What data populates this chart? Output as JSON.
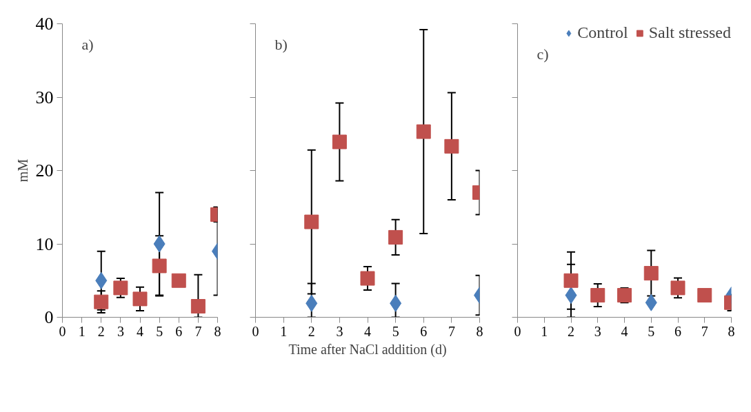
{
  "chart_data": [
    {
      "type": "scatter",
      "annotations": [
        "a)"
      ],
      "ylabel": "mM",
      "xlim": [
        0,
        8
      ],
      "xticks": [
        0,
        1,
        2,
        3,
        4,
        5,
        6,
        7,
        8
      ],
      "ylim": [
        0,
        40
      ],
      "yticks": [
        0,
        10,
        20,
        30,
        40
      ],
      "grid": false,
      "legend": "top right",
      "series": [
        {
          "name": "Control",
          "color": "#4a7ebb",
          "marker": "diamond",
          "x": [
            2,
            5,
            8
          ],
          "values": [
            5.0,
            10.0,
            9.0
          ],
          "errors": [
            4,
            7,
            6
          ]
        },
        {
          "name": "Salt stressed",
          "color": "#c0504d",
          "marker": "square",
          "x": [
            2,
            3,
            4,
            5,
            6,
            7,
            8
          ],
          "values": [
            2.1,
            4.0,
            2.5,
            7.0,
            5.0,
            1.5,
            14.0
          ],
          "errors": [
            1.5,
            1.3,
            1.6,
            4.1,
            null,
            [
              0,
              5.8
            ],
            1
          ]
        }
      ]
    },
    {
      "type": "scatter",
      "annotations": [
        "b)"
      ],
      "xlabel": "Time after NaCl addition (d)",
      "xlim": [
        0,
        8
      ],
      "xticks": [
        0,
        1,
        2,
        3,
        4,
        5,
        6,
        7,
        8
      ],
      "ylim": [
        0,
        40
      ],
      "yticks": [
        {
          "value": 0,
          "label": null
        },
        {
          "value": 10,
          "label": null
        },
        {
          "value": 20,
          "label": null
        },
        {
          "value": 30,
          "label": null
        },
        {
          "value": 40,
          "label": null
        }
      ],
      "tick_labels": "x",
      "grid": false,
      "legend": false,
      "series": [
        {
          "color": "#4a7ebb",
          "marker": "diamond",
          "x": [
            2,
            5,
            8
          ],
          "values": [
            1.9,
            1.9,
            3.0
          ],
          "errors": [
            [
              0,
              4.6
            ],
            [
              0,
              4.6
            ],
            2.7
          ]
        },
        {
          "color": "#c0504d",
          "marker": "square",
          "x": [
            2,
            3,
            4,
            5,
            6,
            7,
            8
          ],
          "values": [
            13.0,
            23.9,
            5.3,
            10.9,
            25.3,
            23.3,
            17.0
          ],
          "errors": [
            9.8,
            5.3,
            1.6,
            2.4,
            13.9,
            7.3,
            3
          ]
        }
      ]
    },
    {
      "type": "scatter",
      "annotations": [
        "c)"
      ],
      "xlim": [
        0,
        8
      ],
      "xticks": [
        0,
        1,
        2,
        3,
        4,
        5,
        6,
        7,
        8
      ],
      "ylim": [
        0,
        40
      ],
      "yticks": [
        {
          "value": 0,
          "label": null
        },
        {
          "value": 10,
          "label": null
        },
        {
          "value": 20,
          "label": null
        },
        {
          "value": 30,
          "label": null
        },
        {
          "value": 40,
          "label": null
        }
      ],
      "tick_labels": "x",
      "grid": false,
      "series": [
        {
          "color": "#4a7ebb",
          "marker": "diamond",
          "x": [
            2,
            5,
            8
          ],
          "values": [
            3.0,
            2.0,
            3.0
          ],
          "errors": [
            [
              0,
              7.2
            ],
            null,
            null
          ]
        },
        {
          "color": "#c0504d",
          "marker": "square",
          "x": [
            2,
            3,
            4,
            5,
            6,
            7,
            8
          ],
          "values": [
            5.0,
            3.0,
            3.0,
            6.0,
            4.0,
            3.0,
            2.0
          ],
          "errors": [
            3.9,
            1.55,
            1,
            3.1,
            1.35,
            null,
            1.1
          ]
        }
      ]
    }
  ]
}
